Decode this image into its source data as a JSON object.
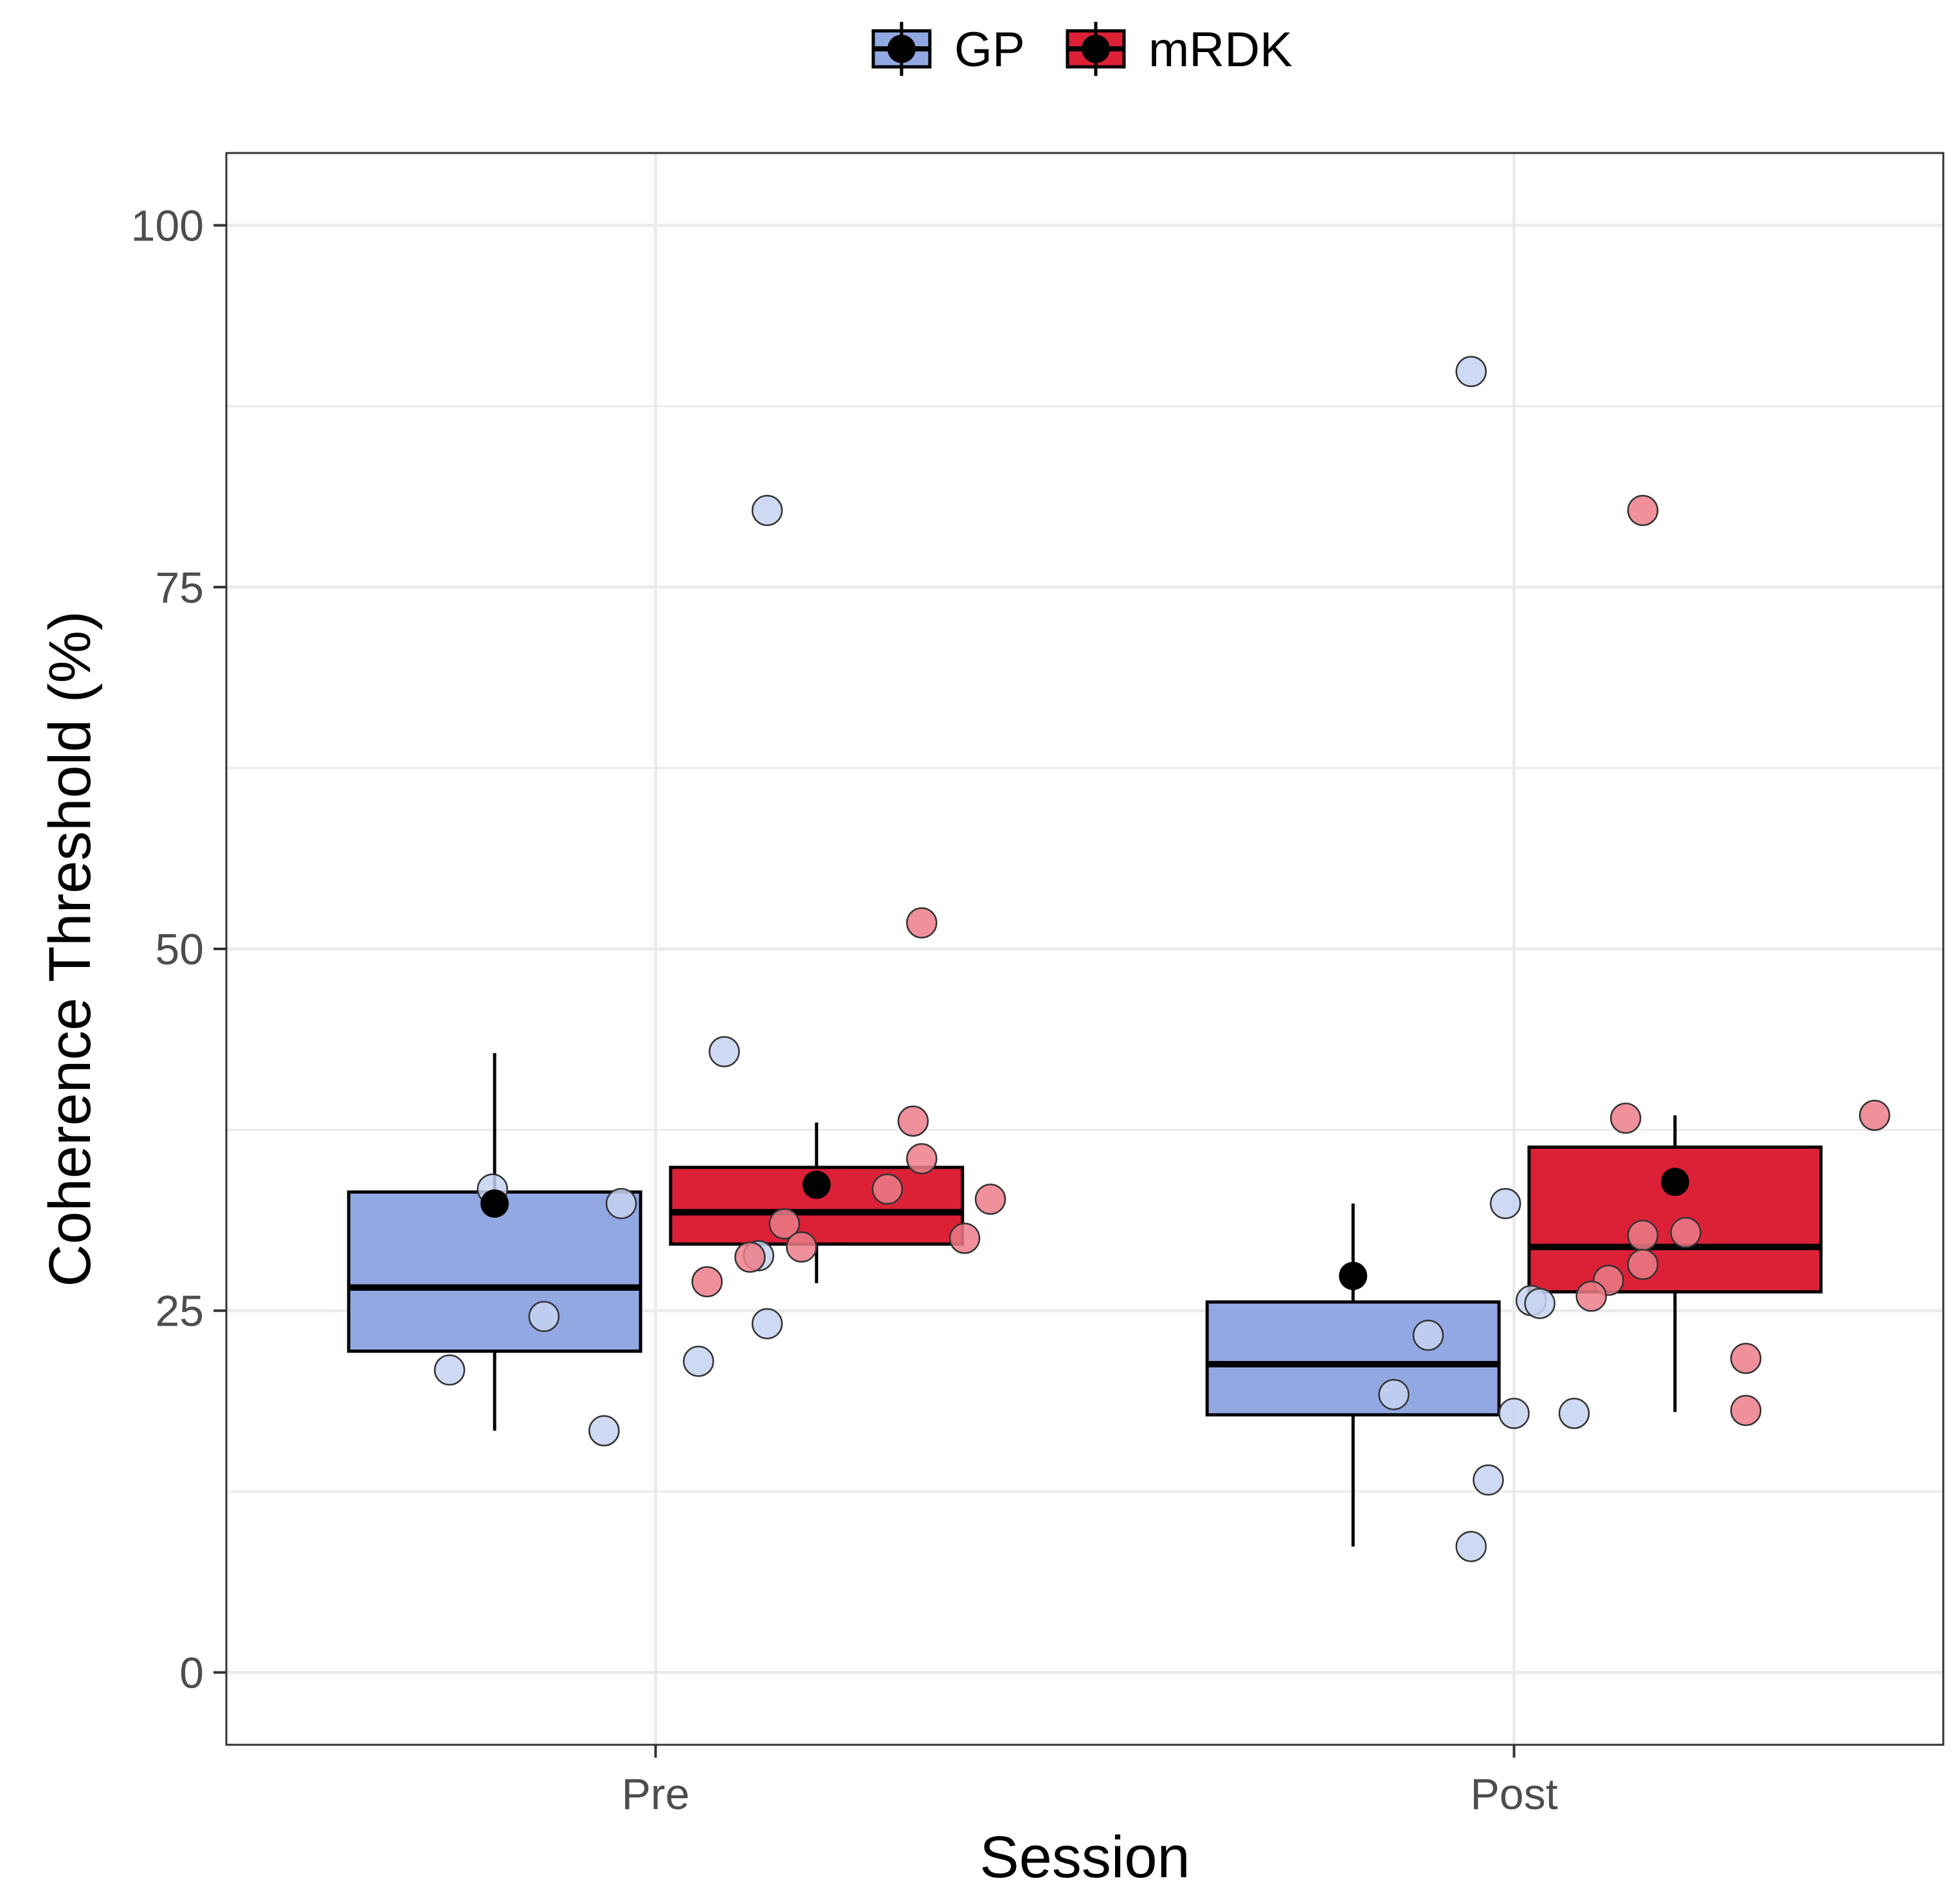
{
  "chart_data": {
    "type": "boxplot",
    "xlabel": "Session",
    "ylabel": "Coherence Threshold (%)",
    "categories": [
      "Pre",
      "Post"
    ],
    "ylim": [
      -5,
      105
    ],
    "yticks": [
      0,
      25,
      50,
      75,
      100
    ],
    "grid": true,
    "legend_position": "top",
    "series": [
      {
        "name": "GP",
        "fill": "#92a8e3",
        "point_fill": "#c5d2f1",
        "boxes": [
          {
            "category": "Pre",
            "q1": 22.2,
            "median": 26.6,
            "q3": 33.2,
            "whisker_low": 16.7,
            "whisker_high": 42.8,
            "mean": 32.4,
            "points": [
              {
                "x": -0.19,
                "y": 33.4
              },
              {
                "x": -0.04,
                "y": 32.4
              },
              {
                "x": -0.13,
                "y": 24.6
              },
              {
                "x": 0.08,
                "y": 42.9
              },
              {
                "x": 0.12,
                "y": 28.8
              },
              {
                "x": 0.13,
                "y": 24.1
              },
              {
                "x": 0.05,
                "y": 21.5
              },
              {
                "x": -0.24,
                "y": 20.9
              },
              {
                "x": -0.06,
                "y": 16.7
              },
              {
                "x": 0.13,
                "y": 80.3
              }
            ]
          },
          {
            "category": "Post",
            "q1": 17.8,
            "median": 21.3,
            "q3": 25.6,
            "whisker_low": 8.7,
            "whisker_high": 32.4,
            "mean": 27.4,
            "points": [
              {
                "x": -0.01,
                "y": 32.4
              },
              {
                "x": 0.02,
                "y": 25.7
              },
              {
                "x": 0.03,
                "y": 25.5
              },
              {
                "x": -0.1,
                "y": 23.3
              },
              {
                "x": -0.14,
                "y": 19.2
              },
              {
                "x": 0.0,
                "y": 17.9
              },
              {
                "x": 0.07,
                "y": 17.9
              },
              {
                "x": -0.03,
                "y": 13.3
              },
              {
                "x": -0.05,
                "y": 8.7
              },
              {
                "x": -0.05,
                "y": 89.9
              }
            ]
          }
        ]
      },
      {
        "name": "mRDK",
        "fill": "#dc2137",
        "point_fill": "#ec7d88",
        "boxes": [
          {
            "category": "Pre",
            "q1": 29.6,
            "median": 31.8,
            "q3": 34.9,
            "whisker_low": 26.9,
            "whisker_high": 38.0,
            "mean": 33.7,
            "points": [
              {
                "x": 0.31,
                "y": 51.8
              },
              {
                "x": 0.3,
                "y": 38.1
              },
              {
                "x": 0.31,
                "y": 35.5
              },
              {
                "x": 0.27,
                "y": 33.4
              },
              {
                "x": 0.39,
                "y": 32.7
              },
              {
                "x": 0.15,
                "y": 31.0
              },
              {
                "x": 0.17,
                "y": 29.4
              },
              {
                "x": 0.36,
                "y": 30.0
              },
              {
                "x": 0.11,
                "y": 28.7
              },
              {
                "x": 0.06,
                "y": 27.0
              }
            ]
          },
          {
            "category": "Post",
            "q1": 26.3,
            "median": 29.4,
            "q3": 36.3,
            "whisker_low": 18.0,
            "whisker_high": 38.5,
            "mean": 33.9,
            "points": [
              {
                "x": 0.13,
                "y": 38.3
              },
              {
                "x": 0.42,
                "y": 38.5
              },
              {
                "x": 0.15,
                "y": 30.2
              },
              {
                "x": 0.2,
                "y": 30.4
              },
              {
                "x": 0.15,
                "y": 28.2
              },
              {
                "x": 0.11,
                "y": 27.1
              },
              {
                "x": 0.09,
                "y": 26.0
              },
              {
                "x": 0.27,
                "y": 21.7
              },
              {
                "x": 0.27,
                "y": 18.1
              },
              {
                "x": 0.15,
                "y": 80.3
              }
            ]
          }
        ]
      }
    ]
  }
}
